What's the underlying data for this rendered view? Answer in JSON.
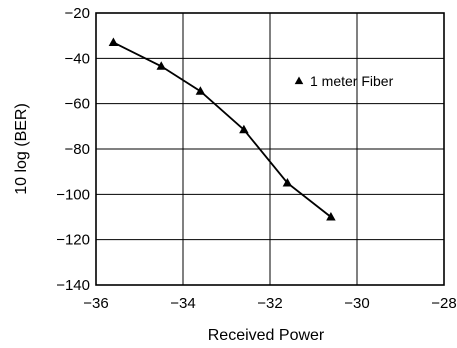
{
  "chart_data": {
    "type": "line",
    "title": "",
    "xlabel": "Received Power",
    "ylabel": "10 log (BER)",
    "xlim": [
      -36,
      -28
    ],
    "ylim": [
      -140,
      -20
    ],
    "xticks": [
      -36,
      -34,
      -32,
      -30,
      -28
    ],
    "yticks": [
      -20,
      -40,
      -60,
      -80,
      -100,
      -120,
      -140
    ],
    "xtick_labels": [
      "−36",
      "−34",
      "−32",
      "−30",
      "−28"
    ],
    "ytick_labels": [
      "−20",
      "−40",
      "−60",
      "−80",
      "−100",
      "−120",
      "−140"
    ],
    "grid": true,
    "legend_position": "top-right",
    "marker": "triangle",
    "series": [
      {
        "name": "1 meter Fiber",
        "color": "#000000",
        "x": [
          -35.6,
          -34.5,
          -33.6,
          -32.6,
          -31.6,
          -30.6
        ],
        "y": [
          -33,
          -43.5,
          -54.5,
          -71.5,
          -95,
          -110
        ]
      }
    ]
  }
}
